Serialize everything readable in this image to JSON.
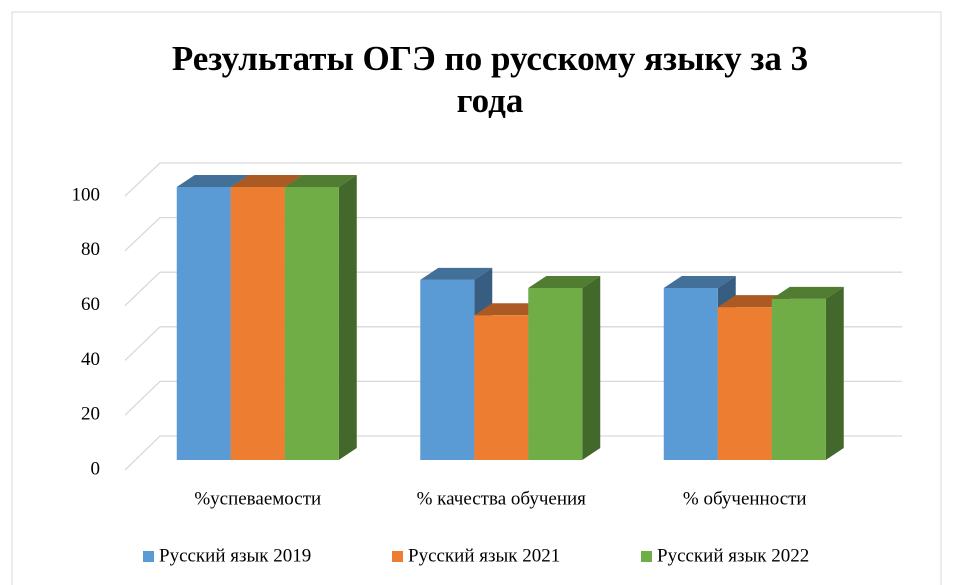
{
  "chart_data": {
    "type": "bar3d",
    "title": "Результаты ОГЭ по русскому языку за 3 года",
    "categories": [
      "%успеваемости",
      "% качества обучения",
      "% обученности"
    ],
    "series": [
      {
        "name": "Русский язык 2019",
        "color": "#5b9bd5",
        "values": [
          100,
          66,
          63
        ]
      },
      {
        "name": "Русский язык 2021",
        "color": "#ed7d31",
        "values": [
          100,
          53,
          56
        ]
      },
      {
        "name": "Русский язык 2022",
        "color": "#70ad47",
        "values": [
          100,
          63,
          59
        ]
      }
    ],
    "ylim": [
      0,
      100
    ],
    "yticks": [
      0,
      20,
      40,
      60,
      80,
      100
    ],
    "grid": true,
    "legend": "bottom"
  }
}
